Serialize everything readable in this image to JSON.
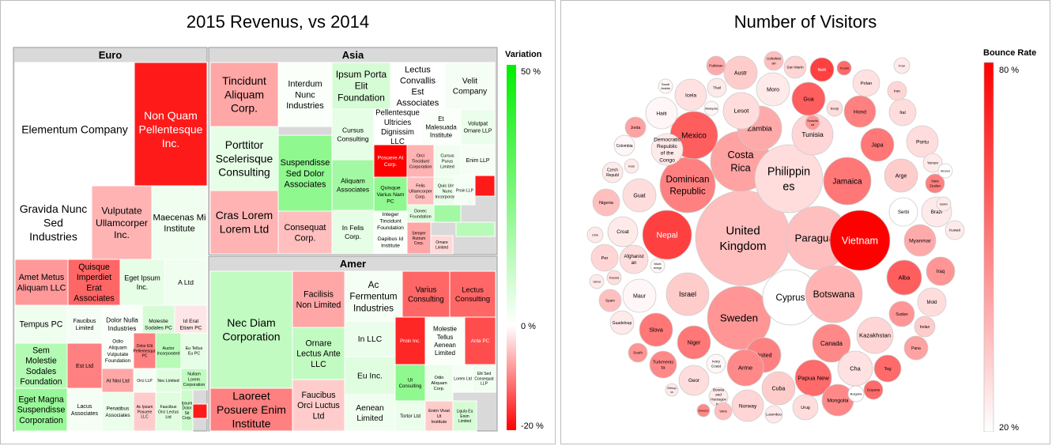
{
  "treemap_title": "2015 Revenus, vs 2014",
  "bubble_title": "Number of Visitors",
  "colors": {
    "negative": "#ff0000",
    "neutral": "#ffffff",
    "positive": "#00ee00",
    "bounce_high": "#ff0000",
    "bounce_low": "#ffffff"
  },
  "chart_data": [
    {
      "type": "treemap",
      "title": "2015 Revenus, vs 2014",
      "legend_title": "Variation",
      "legend_ticks": [
        "50 %",
        "0 %",
        "-20 %"
      ],
      "color_scale": {
        "min": -20,
        "mid": 0,
        "max": 50
      },
      "groups": [
        {
          "name": "Euro",
          "items": [
            {
              "label": "Elementum Company",
              "variation": 0
            },
            {
              "label": "Non Quam Pellentesque Inc.",
              "variation": -18
            },
            {
              "label": "Gravida Nunc Sed Industries",
              "variation": 0
            },
            {
              "label": "Vulputate Ullamcorper Inc.",
              "variation": -6
            },
            {
              "label": "Maecenas Mi Institute",
              "variation": 3
            },
            {
              "label": "Amet Metus Aliquam LLC",
              "variation": -8
            },
            {
              "label": "Quisque Imperdiet Erat Associates",
              "variation": -12
            },
            {
              "label": "Eget Ipsum Inc.",
              "variation": 5
            },
            {
              "label": "A Ltd",
              "variation": 3
            },
            {
              "label": "Tempus PC",
              "variation": 3
            },
            {
              "label": "Faucibus Limited",
              "variation": 2
            },
            {
              "label": "Dolor Nulla Industries",
              "variation": 1
            },
            {
              "label": "Molestie Sodales PC",
              "variation": 8
            },
            {
              "label": "Id Erat Etiam PC",
              "variation": -2
            },
            {
              "label": "Sem Molestie Sodales Foundation",
              "variation": 15
            },
            {
              "label": "Est Ltd",
              "variation": -10
            },
            {
              "label": "Odio Aliquam Vulputate Foundation",
              "variation": 1
            },
            {
              "label": "Dolor Elit Pellentesque PC",
              "variation": -10
            },
            {
              "label": "Auctor Incorporated",
              "variation": 14
            },
            {
              "label": "Eu Tellus Eu PC",
              "variation": 5
            },
            {
              "label": "At Nisi Ltd",
              "variation": -7
            },
            {
              "label": "Orci LLP",
              "variation": 2
            },
            {
              "label": "Nec Limited",
              "variation": 6
            },
            {
              "label": "Nullam Lorem Corporation",
              "variation": 12
            },
            {
              "label": "Eget Magna Suspendisse Corporation",
              "variation": 20
            },
            {
              "label": "Lacus Associates",
              "variation": 2
            },
            {
              "label": "Penatibus Associates",
              "variation": 4
            },
            {
              "label": "Ac Ipsum Posuere LLC",
              "variation": -4
            },
            {
              "label": "Faucibus Orci Lectus Ltd",
              "variation": 6
            },
            {
              "label": "Ipsum Dolor Sit Corp.",
              "variation": 10
            },
            {
              "label": "",
              "variation": -18
            }
          ]
        },
        {
          "name": "Asia",
          "items": [
            {
              "label": "Tincidunt Aliquam Corp.",
              "variation": -7
            },
            {
              "label": "Interdum Nunc Industries",
              "variation": 1
            },
            {
              "label": "Ipsum Porta Elit Foundation",
              "variation": 8
            },
            {
              "label": "Lectus Convallis Est Associates",
              "variation": 0
            },
            {
              "label": "Velit Company",
              "variation": 2
            },
            {
              "label": "Porttitor Scelerisque Consulting",
              "variation": 5
            },
            {
              "label": "Suspendisse Sed Dolor Associates",
              "variation": 22
            },
            {
              "label": "Cursus Consulting",
              "variation": 5
            },
            {
              "label": "Pellentesque Ultricies Dignissim LLC",
              "variation": 0
            },
            {
              "label": "Et Malesuada Institute",
              "variation": 1
            },
            {
              "label": "Volutpat Ornare LLP",
              "variation": 4
            },
            {
              "label": "Posuere At Corp.",
              "variation": -20
            },
            {
              "label": "Orci Tincidunt Corporation",
              "variation": -6
            },
            {
              "label": "Cursus Purus Limited",
              "variation": 3
            },
            {
              "label": "Enim LLP",
              "variation": 2
            },
            {
              "label": "Aliquam Associates",
              "variation": 18
            },
            {
              "label": "Felis Ullamcorper Corp.",
              "variation": -5
            },
            {
              "label": "Quis Urna Nunc Incorporated",
              "variation": 4
            },
            {
              "label": "Proin LLP",
              "variation": 2
            },
            {
              "label": "",
              "variation": -18
            },
            {
              "label": "Cras Lorem Lorem Ltd",
              "variation": -6
            },
            {
              "label": "Consequat Corp.",
              "variation": -5
            },
            {
              "label": "Quisque Varius Nam PC",
              "variation": 22
            },
            {
              "label": "Integer Tincidunt Foundation",
              "variation": 2
            },
            {
              "label": "Donec Foundation",
              "variation": 6
            },
            {
              "label": "",
              "variation": 18
            },
            {
              "label": "In Felis Corp.",
              "variation": 5
            },
            {
              "label": "Dapibus Id Institute",
              "variation": 1
            },
            {
              "label": "Semper Rutrum Corp.",
              "variation": -7
            },
            {
              "label": "Ornare Limited",
              "variation": -3
            },
            {
              "label": "",
              "variation": 14
            }
          ]
        },
        {
          "name": "Amer",
          "items": [
            {
              "label": "Nec Diam Corporation",
              "variation": 12
            },
            {
              "label": "Facilisis Non Limited",
              "variation": -7
            },
            {
              "label": "Ac Fermentum Industries",
              "variation": 2
            },
            {
              "label": "Varius Consulting",
              "variation": -12
            },
            {
              "label": "Lectus Consulting",
              "variation": -12
            },
            {
              "label": "Ornare Lectus Ante LLC",
              "variation": 12
            },
            {
              "label": "In LLC",
              "variation": 4
            },
            {
              "label": "Proin Inc.",
              "variation": -17
            },
            {
              "label": "Molestie Tellus Aenean Limited",
              "variation": 1
            },
            {
              "label": "Ante PC",
              "variation": -14
            },
            {
              "label": "Eu Inc.",
              "variation": 6
            },
            {
              "label": "Ut Consulting",
              "variation": 22
            },
            {
              "label": "Odio Aliquam Corp.",
              "variation": 4
            },
            {
              "label": "Lorem Ltd",
              "variation": 2
            },
            {
              "label": "Elit Sed Consequat LLP",
              "variation": 3
            },
            {
              "label": "Laoreet Posuere Enim Institute",
              "variation": -10
            },
            {
              "label": "Faucibus Orci Luctus Ltd",
              "variation": -4
            },
            {
              "label": "Aenean Limited",
              "variation": 3
            },
            {
              "label": "Tortor Ltd",
              "variation": 4
            },
            {
              "label": "Enim Vivat Ut Institute",
              "variation": -4
            },
            {
              "label": "Ligula Eu Enim Limited",
              "variation": 8
            }
          ]
        }
      ]
    },
    {
      "type": "bubble",
      "title": "Number of Visitors",
      "legend_title": "Bounce Rate",
      "legend_ticks": [
        "80 %",
        "20 %"
      ],
      "color_scale": {
        "min": 20,
        "max": 80
      },
      "bubbles": [
        {
          "label": "United Kingdom",
          "bounce": 35
        },
        {
          "label": "Costa Rica",
          "bounce": 42
        },
        {
          "label": "Philippines",
          "bounce": 28
        },
        {
          "label": "Sweden",
          "bounce": 45
        },
        {
          "label": "Cyprus",
          "bounce": 20
        },
        {
          "label": "Paraguay",
          "bounce": 35
        },
        {
          "label": "Botswana",
          "bounce": 38
        },
        {
          "label": "Israel",
          "bounce": 32
        },
        {
          "label": "Nepal",
          "bounce": 65
        },
        {
          "label": "Vietnam",
          "bounce": 80
        },
        {
          "label": "Dominican Republic",
          "bounce": 50
        },
        {
          "label": "Mexico",
          "bounce": 58
        },
        {
          "label": "Zambia",
          "bounce": 40
        },
        {
          "label": "Jamaica",
          "bounce": 52
        },
        {
          "label": "Tunisia",
          "bounce": 30
        },
        {
          "label": "Lesot",
          "bounce": 28
        },
        {
          "label": "Austr",
          "bounce": 32
        },
        {
          "label": "Moro",
          "bounce": 25
        },
        {
          "label": "Gua",
          "bounce": 58
        },
        {
          "label": "Hond",
          "bounce": 50
        },
        {
          "label": "Japa",
          "bounce": 52
        },
        {
          "label": "Arge",
          "bounce": 32
        },
        {
          "label": "Haiti",
          "bounce": 22
        },
        {
          "label": "Icela",
          "bounce": 27
        },
        {
          "label": "Guat",
          "bounce": 28
        },
        {
          "label": "Croat",
          "bounce": 25
        },
        {
          "label": "Alba",
          "bounce": 58
        },
        {
          "label": "Iraq",
          "bounce": 45
        },
        {
          "label": "Myanmar",
          "bounce": 40
        },
        {
          "label": "Maur",
          "bounce": 22
        },
        {
          "label": "Slova",
          "bounce": 52
        },
        {
          "label": "Niger",
          "bounce": 52
        },
        {
          "label": "United",
          "bounce": 50
        },
        {
          "label": "Canada",
          "bounce": 48
        },
        {
          "label": "Kazakhstan",
          "bounce": 30
        },
        {
          "label": "Arme",
          "bounce": 48
        },
        {
          "label": "Cuba",
          "bounce": 32
        },
        {
          "label": "Cha",
          "bounce": 27
        },
        {
          "label": "Tog",
          "bounce": 55
        },
        {
          "label": "Turkmenista",
          "bounce": 48
        },
        {
          "label": "Geor",
          "bounce": 28
        },
        {
          "label": "Papua New",
          "bounce": 55
        },
        {
          "label": "Norway",
          "bounce": 30
        },
        {
          "label": "Mongolia",
          "bounce": 48
        },
        {
          "label": "Urug",
          "bounce": 28
        },
        {
          "label": "Afghanistan",
          "bounce": 28
        },
        {
          "label": "Per",
          "bounce": 30
        },
        {
          "label": "Nigeria",
          "bounce": 35
        },
        {
          "label": "Spain",
          "bounce": 35
        },
        {
          "label": "Guadeloup",
          "bounce": 25
        },
        {
          "label": "Sudan",
          "bounce": 45
        },
        {
          "label": "Irelan",
          "bounce": 32
        },
        {
          "label": "Pana",
          "bounce": 42
        },
        {
          "label": "Mold",
          "bounce": 28
        },
        {
          "label": "Brazi",
          "bounce": 25
        },
        {
          "label": "Serbi",
          "bounce": 20
        },
        {
          "label": "Kuwait",
          "bounce": 25
        },
        {
          "label": "Portu",
          "bounce": 28
        },
        {
          "label": "Ital",
          "bounce": 28
        },
        {
          "label": "Polan",
          "bounce": 27
        },
        {
          "label": "Neth",
          "bounce": 65
        },
        {
          "label": "San Marin",
          "bounce": 30
        },
        {
          "label": "Uzbekistan",
          "bounce": 35
        },
        {
          "label": "Pakistan",
          "bounce": 40
        },
        {
          "label": "Thail",
          "bounce": 25
        },
        {
          "label": "Iran",
          "bounce": 30
        },
        {
          "label": "Fran",
          "bounce": 25
        },
        {
          "label": "Bangl",
          "bounce": 28
        },
        {
          "label": "Jorda",
          "bounce": 42
        },
        {
          "label": "Colombia",
          "bounce": 22
        },
        {
          "label": "Democratic Republic of the Congo",
          "bounce": 25
        },
        {
          "label": "Czech Republ",
          "bounce": 25
        },
        {
          "label": "Indo",
          "bounce": 25
        },
        {
          "label": "Chin",
          "bounce": 25
        },
        {
          "label": "Mont enegr",
          "bounce": 22
        },
        {
          "label": "Russia",
          "bounce": 28
        },
        {
          "label": "Ukrai",
          "bounce": 25
        },
        {
          "label": "South",
          "bounce": 45
        },
        {
          "label": "Ivory Coast",
          "bounce": 22
        },
        {
          "label": "Guyana",
          "bounce": 55
        },
        {
          "label": "Bulgaria",
          "bounce": 20
        },
        {
          "label": "Yemen",
          "bounce": 25
        },
        {
          "label": "New Zealan",
          "bounce": 50
        },
        {
          "label": "Sloven",
          "bounce": 20
        },
        {
          "label": "Bolivi",
          "bounce": 25
        },
        {
          "label": "Tuvalu",
          "bounce": 55
        },
        {
          "label": "Saudi Arabia",
          "bounce": 22
        },
        {
          "label": "Malaysia",
          "bounce": 22
        },
        {
          "label": "Swaziland",
          "bounce": 45
        },
        {
          "label": "Ethiopia",
          "bounce": 25
        },
        {
          "label": "Bosnia and Herzegovina",
          "bounce": 25
        },
        {
          "label": "Greece",
          "bounce": 48
        },
        {
          "label": "Vene",
          "bounce": 35
        },
        {
          "label": "Luxembou",
          "bounce": 25
        }
      ]
    }
  ]
}
